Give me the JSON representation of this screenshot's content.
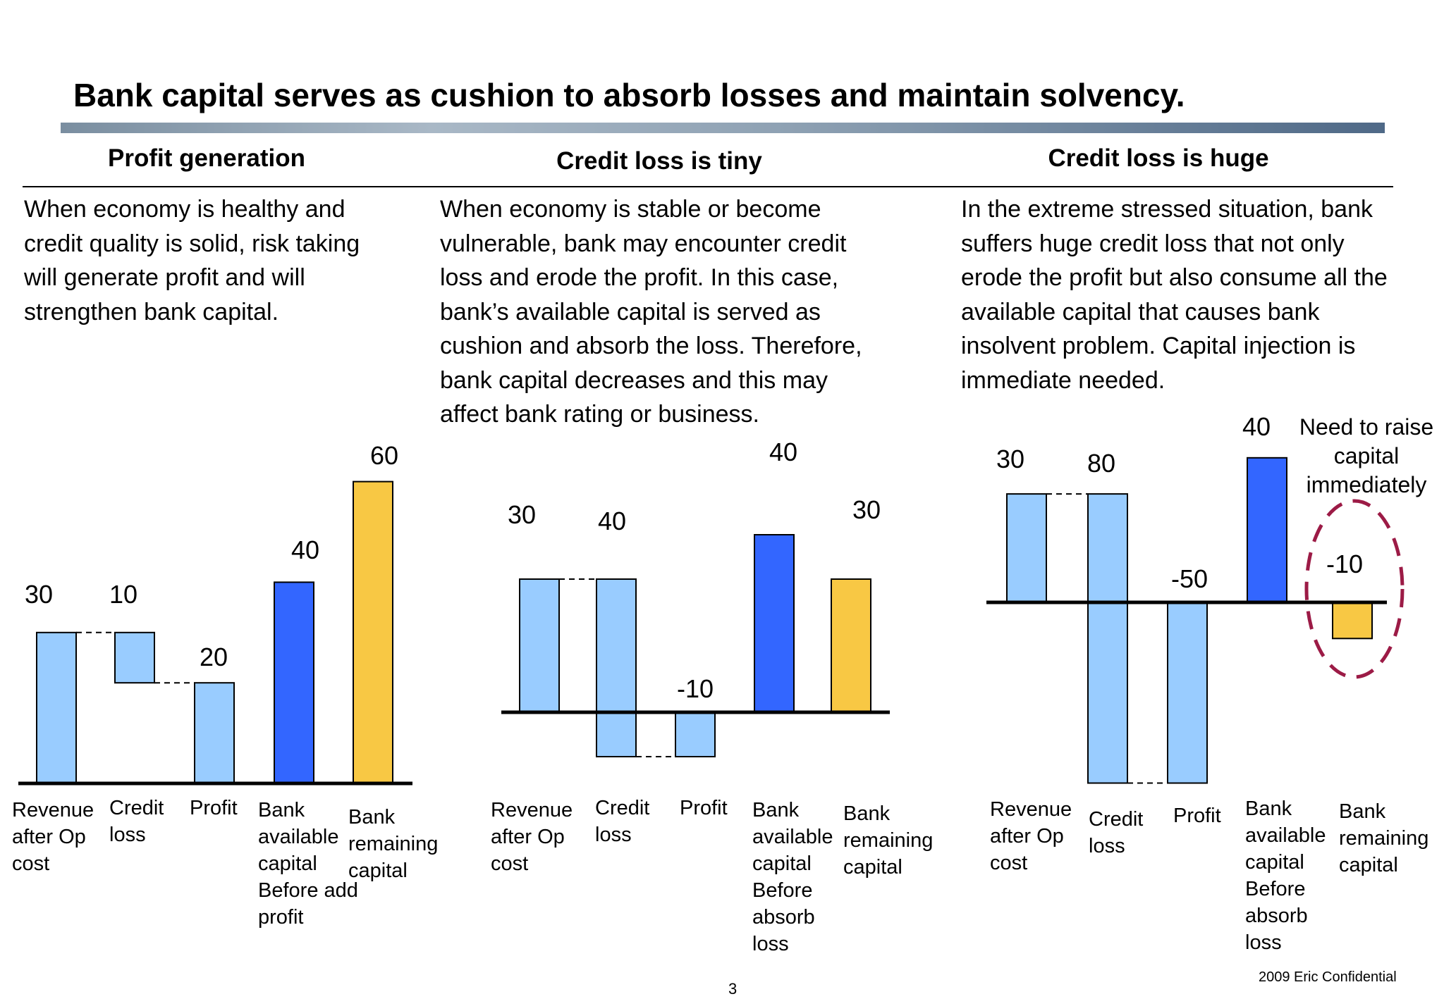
{
  "title": "Bank capital serves as cushion to absorb losses and maintain solvency.",
  "page_number": "3",
  "confidential": "2009 Eric  Confidential",
  "colors": {
    "light_bar": "#99ccff",
    "capital_bar": "#3366ff",
    "remaining_bar": "#f8c844",
    "highlight_circle": "#9c1b46"
  },
  "panels": [
    {
      "heading": "Profit generation",
      "text": [
        "When economy is healthy and",
        "credit quality is solid, risk taking",
        "will generate profit and will",
        "strengthen bank capital."
      ]
    },
    {
      "heading": "Credit loss is tiny",
      "text": [
        "When economy is stable or become",
        "vulnerable, bank may encounter credit",
        "loss and erode the profit. In this case,",
        "bank’s available capital is served as",
        "cushion and absorb the loss. Therefore,",
        "bank capital decreases and this may",
        "affect bank rating or business."
      ]
    },
    {
      "heading": "Credit loss is huge",
      "text": [
        "In the extreme stressed situation, bank",
        "suffers huge credit loss that not only",
        "erode the profit but also consume all the",
        "available capital that causes bank",
        "insolvent problem. Capital injection is",
        "immediate needed."
      ],
      "callout": [
        "Need to raise",
        "capital",
        "immediately"
      ]
    }
  ],
  "chart_data": [
    {
      "type": "bar",
      "subtype": "waterfall",
      "title": "Profit generation",
      "categories": [
        [
          "Revenue",
          "after Op",
          "cost"
        ],
        [
          "Credit",
          "loss"
        ],
        [
          "Profit"
        ],
        [
          "Bank",
          "available",
          "capital",
          "Before add",
          "profit"
        ],
        [
          "Bank",
          "remaining",
          "capital"
        ]
      ],
      "bars": [
        {
          "from": 0,
          "to": 30,
          "label": "30",
          "kind": "light"
        },
        {
          "from": 30,
          "to": 20,
          "label": "10",
          "kind": "light"
        },
        {
          "from": 0,
          "to": 20,
          "label": "20",
          "kind": "light"
        },
        {
          "from": 0,
          "to": 40,
          "label": "40",
          "kind": "capital"
        },
        {
          "from": 0,
          "to": 60,
          "label": "60",
          "kind": "remaining"
        }
      ]
    },
    {
      "type": "bar",
      "subtype": "waterfall",
      "title": "Credit loss is tiny",
      "categories": [
        [
          "Revenue",
          "after Op",
          "cost"
        ],
        [
          "Credit",
          "loss"
        ],
        [
          "Profit"
        ],
        [
          "Bank",
          "available",
          "capital",
          "Before",
          "absorb",
          "loss"
        ],
        [
          "Bank",
          "remaining",
          "capital"
        ]
      ],
      "bars": [
        {
          "from": 0,
          "to": 30,
          "label": "30",
          "kind": "light"
        },
        {
          "from": 30,
          "to": -10,
          "label": "40",
          "kind": "light"
        },
        {
          "from": 0,
          "to": -10,
          "label": "-10",
          "kind": "light"
        },
        {
          "from": 0,
          "to": 40,
          "label": "40",
          "kind": "capital"
        },
        {
          "from": 0,
          "to": 30,
          "label": "30",
          "kind": "remaining"
        }
      ]
    },
    {
      "type": "bar",
      "subtype": "waterfall",
      "title": "Credit loss is huge",
      "categories": [
        [
          "Revenue",
          "after Op",
          "cost"
        ],
        [
          "Credit",
          "loss"
        ],
        [
          "Profit"
        ],
        [
          "Bank",
          "available",
          "capital",
          "Before",
          "absorb",
          "loss"
        ],
        [
          "Bank",
          "remaining",
          "capital"
        ]
      ],
      "bars": [
        {
          "from": 0,
          "to": 30,
          "label": "30",
          "kind": "light"
        },
        {
          "from": 30,
          "to": -50,
          "label": "80",
          "kind": "light"
        },
        {
          "from": 0,
          "to": -50,
          "label": "-50",
          "kind": "light"
        },
        {
          "from": 0,
          "to": 40,
          "label": "40",
          "kind": "capital"
        },
        {
          "from": 0,
          "to": -10,
          "label": "-10",
          "kind": "remaining"
        }
      ]
    }
  ]
}
